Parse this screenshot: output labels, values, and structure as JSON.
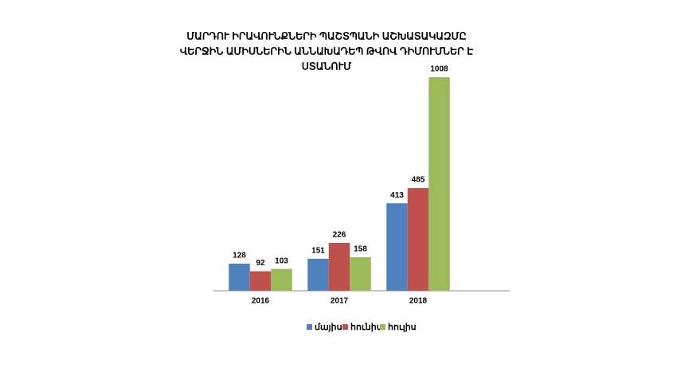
{
  "chart_data": {
    "type": "bar",
    "title": [
      "ՄԱՐԴՈՒ ԻՐԱՎՈՒՆՔՆԵՐԻ ՊԱՇՏՊԱՆԻ ԱՇԽԱՏԱԿԱԶՄԸ",
      "ՎԵՐՋԻՆ ԱՄԻՍՆԵՐԻՆ ԱՆՆԱԽԱԴԵՊ ԹՎՈՎ ԴԻՄՈՒՄՆԵՐ Է",
      "ՍՏԱՆՈՒՄ"
    ],
    "categories": [
      "2016",
      "2017",
      "2018"
    ],
    "series": [
      {
        "name": "մայիս",
        "color": "#4f81bd",
        "values": [
          128,
          151,
          413
        ]
      },
      {
        "name": "հունիս",
        "color": "#c0504d",
        "values": [
          92,
          226,
          485
        ]
      },
      {
        "name": "հուլիս",
        "color": "#9bbb59",
        "values": [
          103,
          158,
          1008
        ]
      }
    ],
    "legend": "bottom"
  }
}
